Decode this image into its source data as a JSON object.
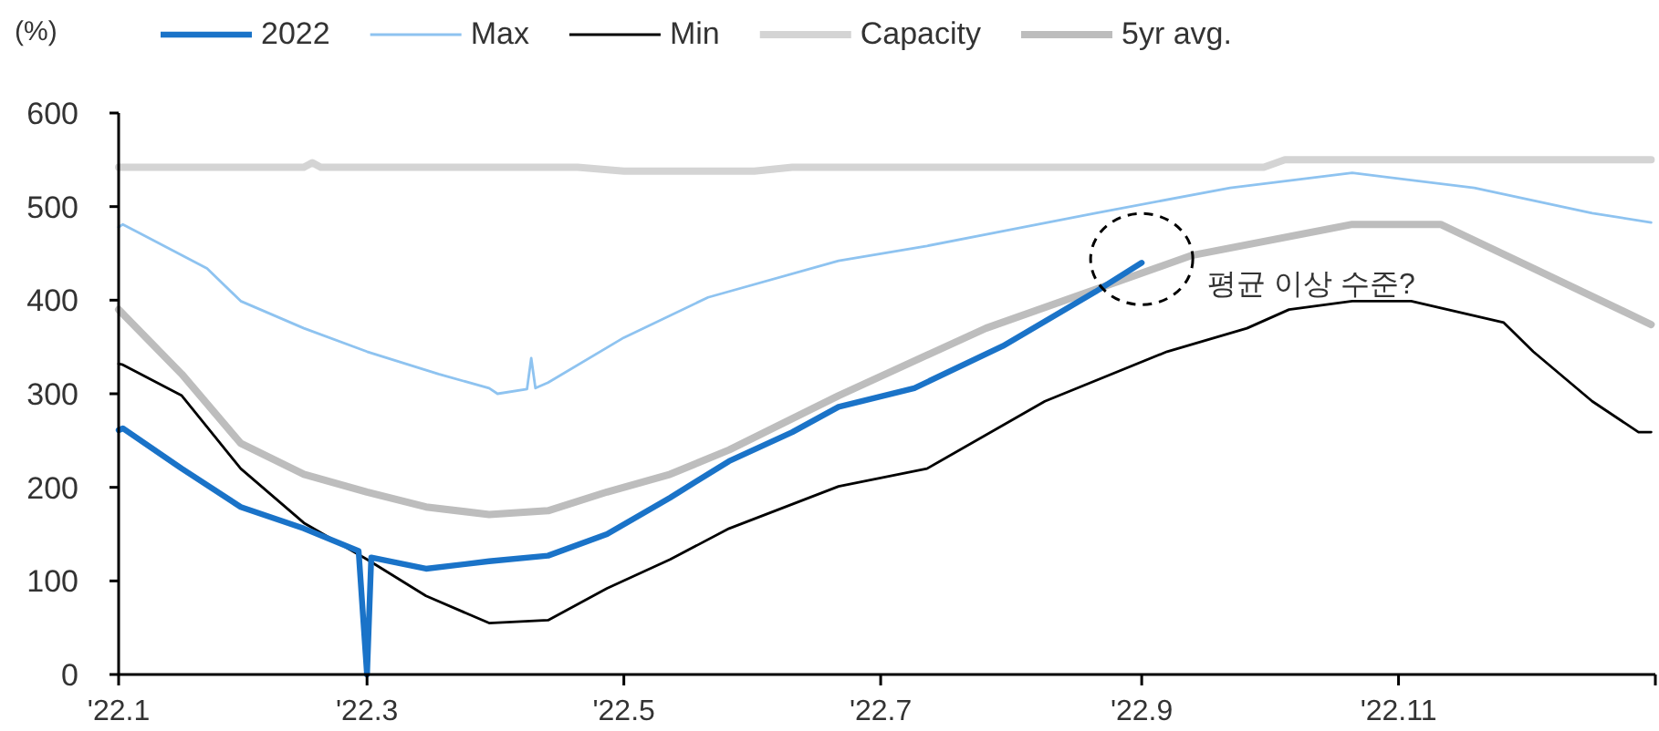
{
  "chart_data": {
    "type": "line",
    "ylabel": "(%)",
    "legend": "top",
    "xlim": [
      "2022-01-01",
      "2023-01-01"
    ],
    "xticks": [
      {
        "value": "2022-01-01",
        "label": "'22.1"
      },
      {
        "value": "2022-03-01",
        "label": "'22.3"
      },
      {
        "value": "2022-05-01",
        "label": "'22.5"
      },
      {
        "value": "2022-07-01",
        "label": "'22.7"
      },
      {
        "value": "2022-09-01",
        "label": "'22.9"
      },
      {
        "value": "2022-11-01",
        "label": "'22.11"
      },
      {
        "value": "2023-01-01",
        "label": null
      }
    ],
    "ylim": [
      0,
      600
    ],
    "yticks": [
      0,
      100,
      200,
      300,
      400,
      500,
      600
    ],
    "series": [
      {
        "name": "2022",
        "color": "#1a73c8",
        "x": [
          "2022-01-01",
          "2022-01-02",
          "2022-01-16",
          "2022-01-30",
          "2022-02-14",
          "2022-02-27",
          "2022-03-01",
          "2022-03-02",
          "2022-03-15",
          "2022-03-30",
          "2022-04-13",
          "2022-04-27",
          "2022-05-12",
          "2022-05-26",
          "2022-06-10",
          "2022-06-21",
          "2022-07-09",
          "2022-07-30",
          "2022-08-21",
          "2022-09-01"
        ],
        "values": [
          261,
          263,
          220,
          179,
          156,
          132,
          0,
          125,
          113,
          121,
          127,
          150,
          189,
          228,
          259,
          286,
          306,
          351,
          409,
          440
        ]
      },
      {
        "name": "Max",
        "color": "#8ec3f0",
        "x": [
          "2022-01-01",
          "2022-01-02",
          "2022-01-22",
          "2022-01-30",
          "2022-02-14",
          "2022-03-01",
          "2022-03-18",
          "2022-03-30",
          "2022-04-01",
          "2022-04-08",
          "2022-04-09",
          "2022-04-10",
          "2022-04-13",
          "2022-05-01",
          "2022-05-21",
          "2022-06-21",
          "2022-07-12",
          "2022-08-21",
          "2022-09-22",
          "2022-10-21",
          "2022-11-19",
          "2022-12-17",
          "2022-12-31"
        ],
        "values": [
          478,
          481,
          434,
          399,
          370,
          345,
          321,
          306,
          300,
          305,
          338,
          306,
          312,
          360,
          403,
          442,
          458,
          493,
          520,
          536,
          520,
          493,
          483
        ]
      },
      {
        "name": "Min",
        "color": "#000000",
        "x": [
          "2022-01-01",
          "2022-01-02",
          "2022-01-16",
          "2022-01-30",
          "2022-02-14",
          "2022-03-01",
          "2022-03-15",
          "2022-03-30",
          "2022-04-13",
          "2022-04-27",
          "2022-05-12",
          "2022-05-26",
          "2022-06-21",
          "2022-07-12",
          "2022-08-09",
          "2022-09-07",
          "2022-09-26",
          "2022-10-06",
          "2022-10-21",
          "2022-11-04",
          "2022-11-26",
          "2022-12-03",
          "2022-12-17",
          "2022-12-28",
          "2022-12-31"
        ],
        "values": [
          332,
          331,
          298,
          220,
          162,
          123,
          84,
          55,
          58,
          92,
          123,
          156,
          201,
          220,
          292,
          345,
          370,
          390,
          399,
          399,
          376,
          345,
          292,
          259,
          259
        ]
      },
      {
        "name": "Capacity",
        "color": "#d4d4d4",
        "x": [
          "2022-01-01",
          "2022-02-14",
          "2022-02-16",
          "2022-02-18",
          "2022-04-20",
          "2022-05-01",
          "2022-06-01",
          "2022-06-10",
          "2022-09-30",
          "2022-10-05",
          "2022-12-31"
        ],
        "values": [
          542,
          542,
          547,
          542,
          542,
          538,
          538,
          542,
          542,
          550,
          550
        ]
      },
      {
        "name": "5yr avg.",
        "color": "#bdbdbd",
        "x": [
          "2022-01-01",
          "2022-01-16",
          "2022-01-30",
          "2022-02-14",
          "2022-03-01",
          "2022-03-15",
          "2022-03-30",
          "2022-04-13",
          "2022-04-27",
          "2022-05-12",
          "2022-05-26",
          "2022-06-21",
          "2022-07-26",
          "2022-09-13",
          "2022-10-21",
          "2022-11-11",
          "2022-12-03",
          "2022-12-31"
        ],
        "values": [
          390,
          321,
          247,
          214,
          195,
          179,
          171,
          175,
          195,
          214,
          240,
          298,
          370,
          448,
          481,
          481,
          434,
          374
        ]
      }
    ],
    "annotations": [
      {
        "text": "평균 이상 수준?",
        "x": "2022-09-01",
        "y": 440
      }
    ]
  }
}
